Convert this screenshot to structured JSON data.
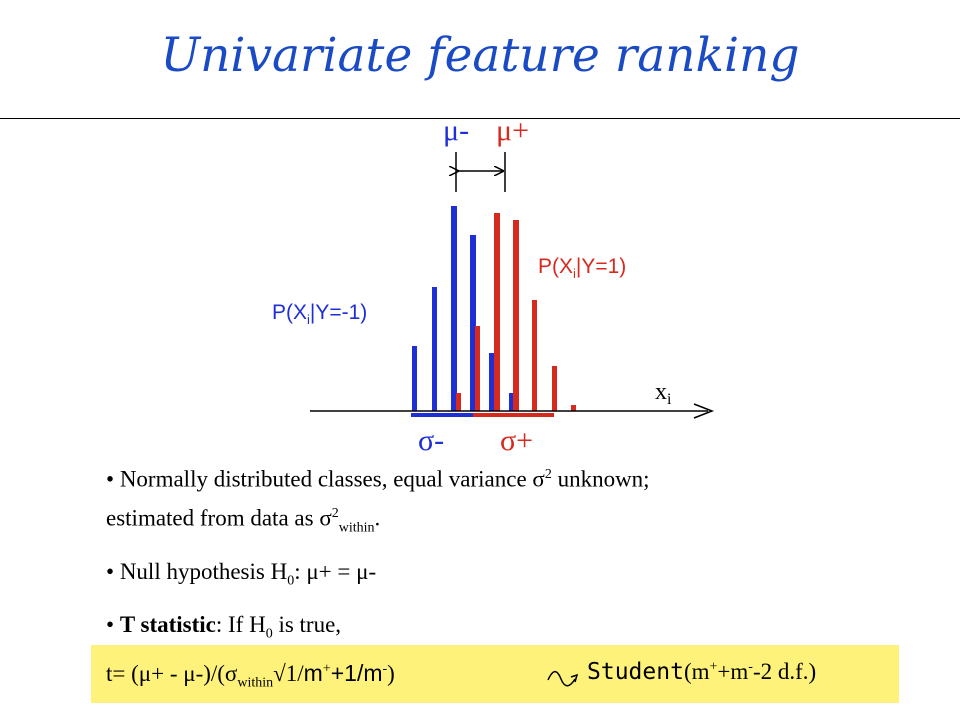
{
  "title": "Univariate feature ranking",
  "diagram": {
    "mu_minus": "μ-",
    "mu_plus": "μ+",
    "sigma_minus": "σ-",
    "sigma_plus": "σ+",
    "neg_dist": {
      "prefix": "P(X",
      "sub": "i",
      "suffix": "|Y=-1)"
    },
    "pos_dist": {
      "prefix": "P(X",
      "sub": "i",
      "suffix": "|Y=1)"
    },
    "axis_label": {
      "main": "x",
      "sub": "i"
    },
    "colors": {
      "neg": "#1f2fd6",
      "pos": "#d62a1f",
      "title": "#1a4bc4",
      "highlight": "#fff27a"
    }
  },
  "bullet1": {
    "text_a": "Normally distributed classes, equal variance ",
    "sigma": "σ",
    "sup": "2",
    "text_b": " unknown;",
    "text_c": "estimated from data as ",
    "sigma2": "σ",
    "sup2": "2",
    "sub2": "within",
    "text_d": "."
  },
  "bullet2": {
    "text_a": "Null hypothesis H",
    "sub": "0",
    "text_b": ": μ+ = μ-"
  },
  "bullet3": {
    "bold": "T statistic",
    "text_a": ": If H",
    "sub": "0",
    "text_b": " is true,"
  },
  "formula": {
    "a": "t= (μ+ - μ-)/(σ",
    "sub": "within",
    "root": "√",
    "b": "1/",
    "c": "m",
    "sup1": "+",
    "d": "+1/m",
    "sup2": "-",
    "e": ")",
    "student": "Student",
    "f": "(m",
    "sup3": "+",
    "g": "+m",
    "sup4": "-",
    "h": "-2 d.f.)"
  }
}
